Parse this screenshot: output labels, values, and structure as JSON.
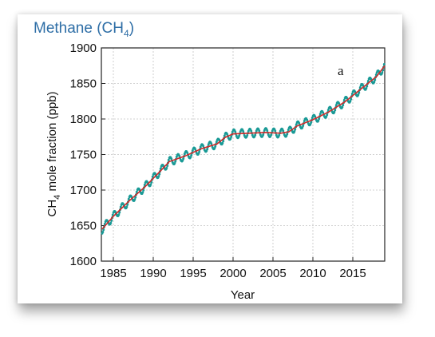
{
  "chart_data": {
    "type": "line",
    "title_parts": {
      "main": "Methane (CH",
      "sub": "4",
      "close": ")"
    },
    "xlabel": "Year",
    "ylabel_parts": {
      "pre": "CH",
      "sub": "4",
      "post": " mole fraction (ppb)"
    },
    "annotation": "a",
    "xlim": [
      1983.5,
      2019
    ],
    "ylim": [
      1600,
      1900
    ],
    "xticks": [
      1985,
      1990,
      1995,
      2000,
      2005,
      2010,
      2015
    ],
    "yticks": [
      1600,
      1650,
      1700,
      1750,
      1800,
      1850,
      1900
    ],
    "grid": true,
    "series": [
      {
        "style": "monthly",
        "color": "#1a9a96",
        "seasonal_amplitude": 6,
        "x": [
          1983.6,
          1985,
          1987,
          1989,
          1991,
          1992,
          1994,
          1996,
          1998,
          1999,
          2000,
          2002,
          2004,
          2006,
          2007,
          2008,
          2010,
          2012,
          2014,
          2016,
          2018,
          2019
        ],
        "y": [
          1645,
          1663,
          1685,
          1705,
          1728,
          1740,
          1748,
          1758,
          1765,
          1774,
          1779,
          1780,
          1781,
          1780,
          1782,
          1790,
          1799,
          1810,
          1824,
          1842,
          1860,
          1875
        ]
      },
      {
        "style": "trend",
        "color": "#d02a2a",
        "x": [
          1983.6,
          1985,
          1987,
          1989,
          1991,
          1992,
          1994,
          1996,
          1998,
          1999,
          2000,
          2002,
          2004,
          2006,
          2007,
          2008,
          2010,
          2012,
          2014,
          2016,
          2018,
          2019
        ],
        "y": [
          1645,
          1663,
          1685,
          1705,
          1728,
          1740,
          1748,
          1758,
          1765,
          1774,
          1779,
          1780,
          1781,
          1780,
          1782,
          1790,
          1799,
          1810,
          1824,
          1842,
          1860,
          1875
        ]
      }
    ]
  }
}
